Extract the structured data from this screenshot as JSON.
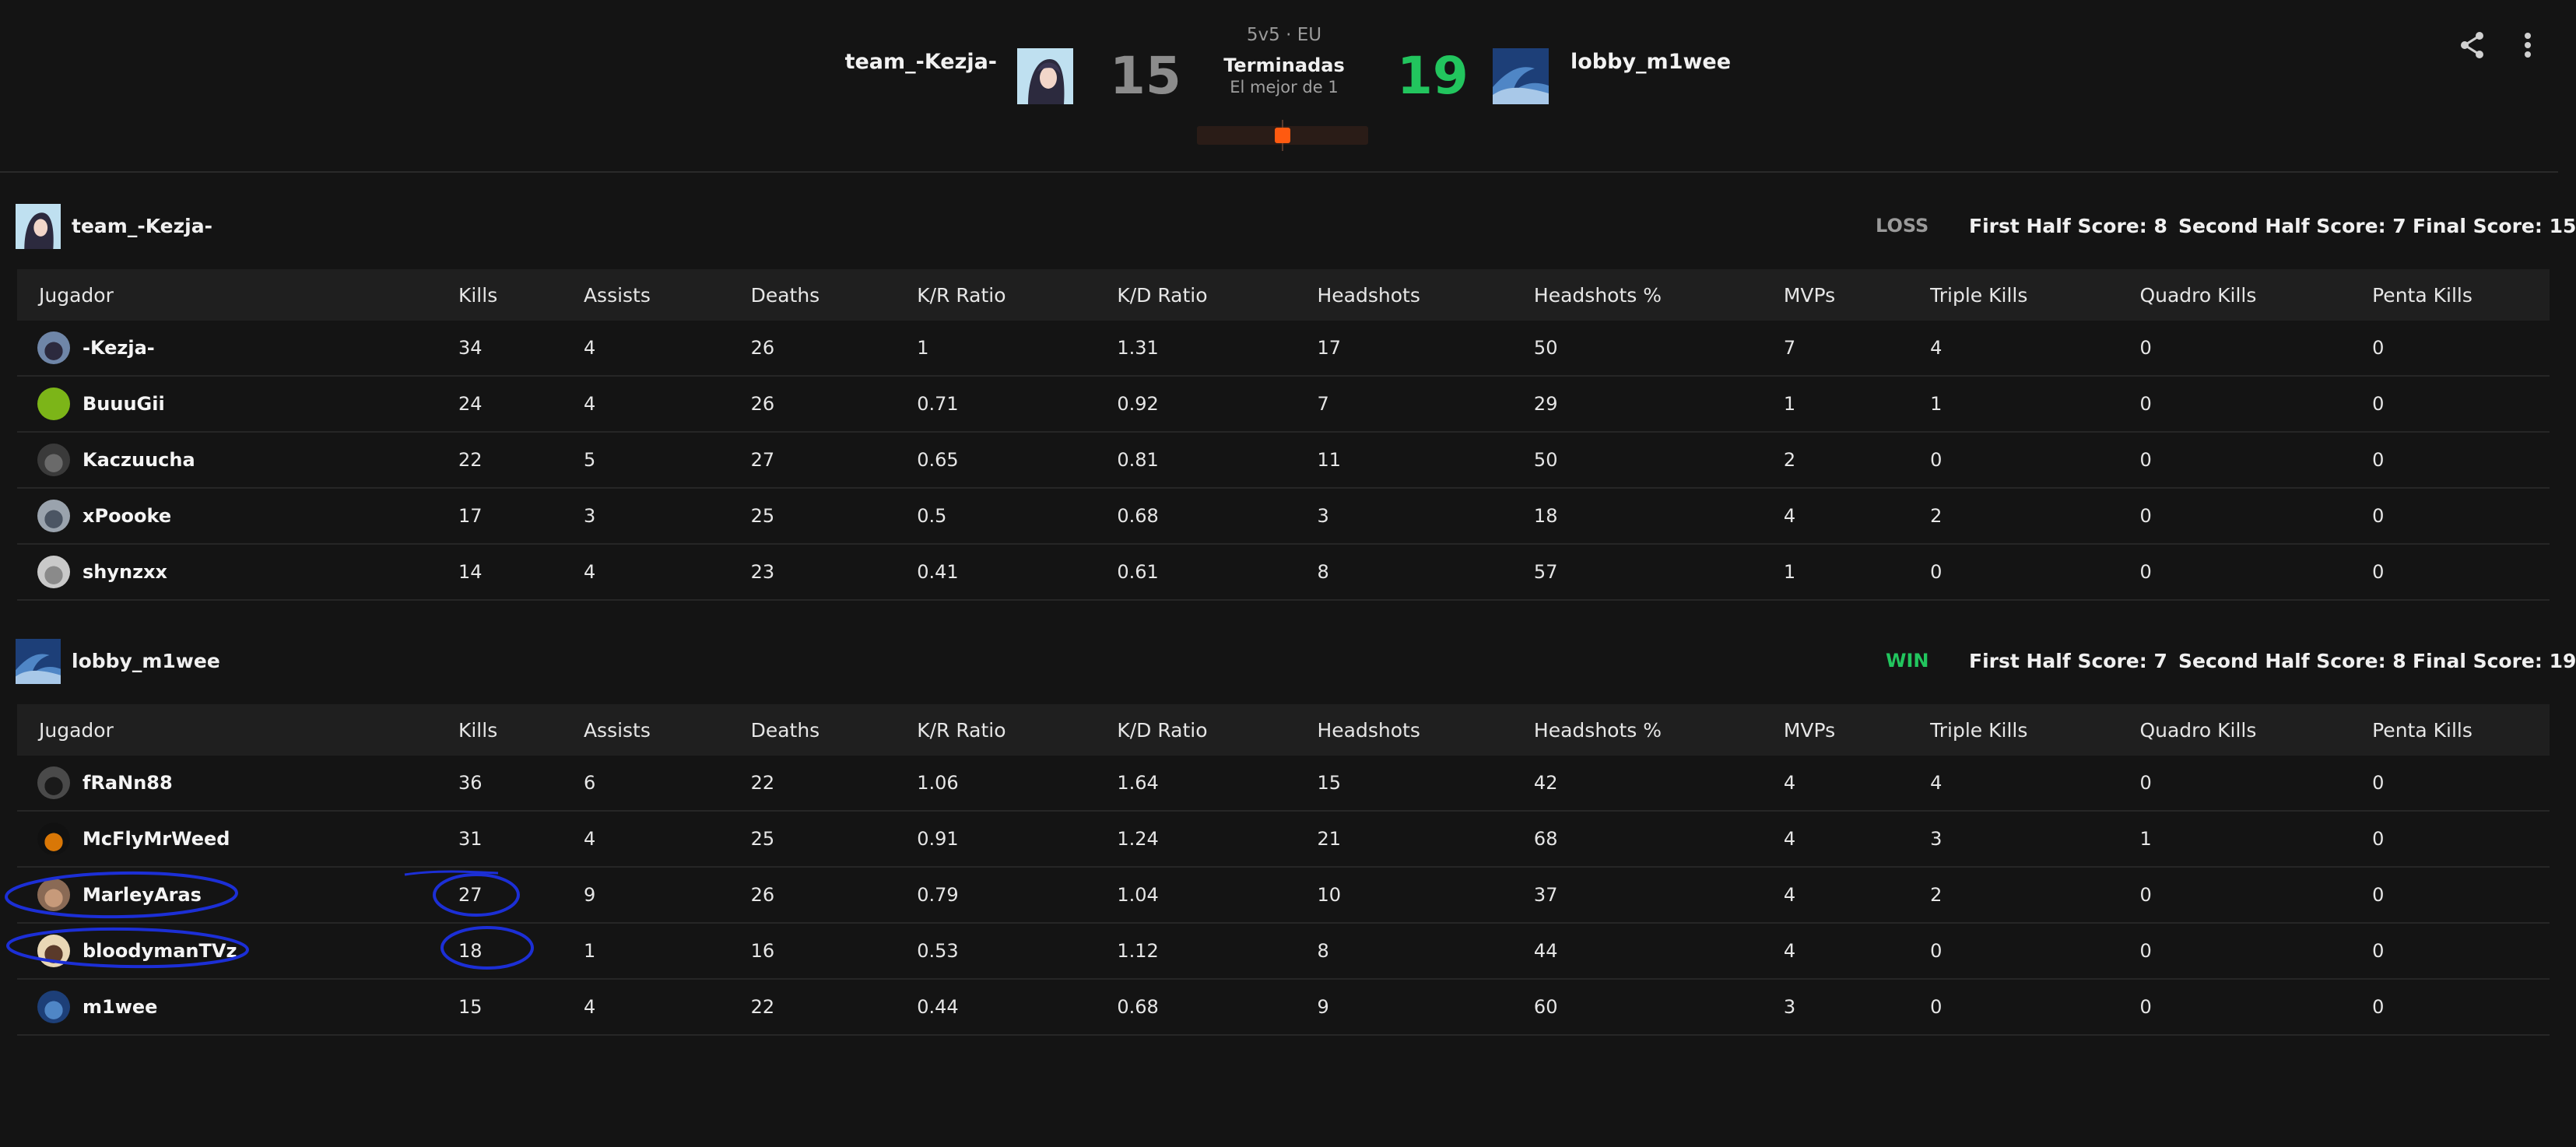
{
  "match": {
    "mode": "5v5 · EU",
    "status": "Terminadas",
    "best_of": "El mejor de 1",
    "team1": {
      "name": "team_-Kezja-",
      "score": "15",
      "score_color": "#8c8c8c"
    },
    "team2": {
      "name": "lobby_m1wee",
      "score": "19",
      "score_color": "#22c55e"
    },
    "icons": {
      "share": "share-icon",
      "more": "more-vertical-icon"
    }
  },
  "columns": [
    "Jugador",
    "Kills",
    "Assists",
    "Deaths",
    "K/R Ratio",
    "K/D Ratio",
    "Headshots",
    "Headshots %",
    "MVPs",
    "Triple Kills",
    "Quadro Kills",
    "Penta Kills"
  ],
  "teams": [
    {
      "name": "team_-Kezja-",
      "result": "LOSS",
      "result_color": "#9a9a9a",
      "first_half": "First Half Score: 8",
      "second_half": "Second Half Score: 7",
      "final": "Final Score: 15",
      "players": [
        {
          "name": "-Kezja-",
          "stats": [
            "34",
            "4",
            "26",
            "1",
            "1.31",
            "17",
            "50",
            "7",
            "4",
            "0",
            "0"
          ]
        },
        {
          "name": "BuuuGii",
          "stats": [
            "24",
            "4",
            "26",
            "0.71",
            "0.92",
            "7",
            "29",
            "1",
            "1",
            "0",
            "0"
          ]
        },
        {
          "name": "Kaczuucha",
          "stats": [
            "22",
            "5",
            "27",
            "0.65",
            "0.81",
            "11",
            "50",
            "2",
            "0",
            "0",
            "0"
          ]
        },
        {
          "name": "xPoooke",
          "stats": [
            "17",
            "3",
            "25",
            "0.5",
            "0.68",
            "3",
            "18",
            "4",
            "2",
            "0",
            "0"
          ]
        },
        {
          "name": "shynzxx",
          "stats": [
            "14",
            "4",
            "23",
            "0.41",
            "0.61",
            "8",
            "57",
            "1",
            "0",
            "0",
            "0"
          ]
        }
      ]
    },
    {
      "name": "lobby_m1wee",
      "result": "WIN",
      "result_color": "#22c55e",
      "first_half": "First Half Score: 7",
      "second_half": "Second Half Score: 8",
      "final": "Final Score: 19",
      "players": [
        {
          "name": "fRaNn88",
          "stats": [
            "36",
            "6",
            "22",
            "1.06",
            "1.64",
            "15",
            "42",
            "4",
            "4",
            "0",
            "0"
          ]
        },
        {
          "name": "McFlyMrWeed",
          "stats": [
            "31",
            "4",
            "25",
            "0.91",
            "1.24",
            "21",
            "68",
            "4",
            "3",
            "1",
            "0"
          ]
        },
        {
          "name": "MarleyAras",
          "stats": [
            "27",
            "9",
            "26",
            "0.79",
            "1.04",
            "10",
            "37",
            "4",
            "2",
            "0",
            "0"
          ]
        },
        {
          "name": "bloodymanTVz",
          "stats": [
            "18",
            "1",
            "16",
            "0.53",
            "1.12",
            "8",
            "44",
            "4",
            "0",
            "0",
            "0"
          ]
        },
        {
          "name": "m1wee",
          "stats": [
            "15",
            "4",
            "22",
            "0.44",
            "0.68",
            "9",
            "60",
            "3",
            "0",
            "0",
            "0"
          ]
        }
      ]
    }
  ]
}
